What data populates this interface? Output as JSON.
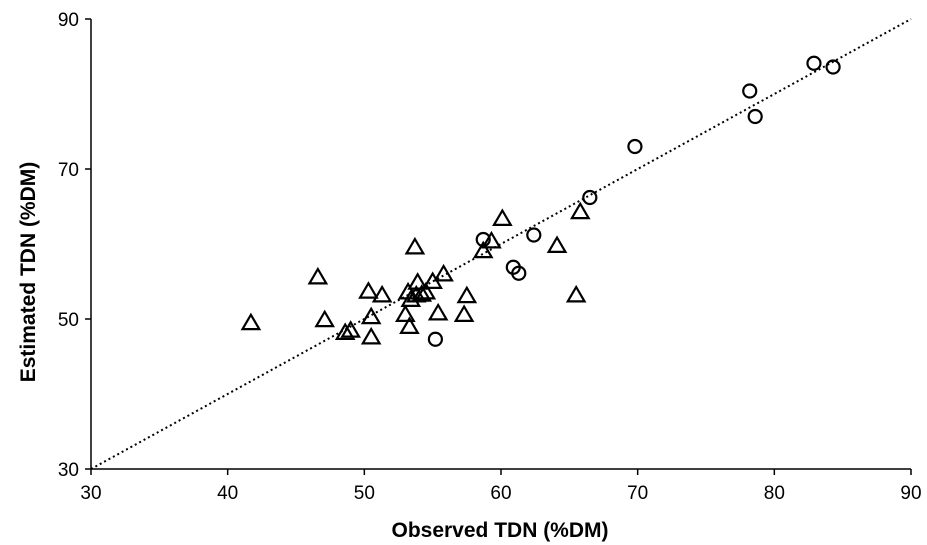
{
  "chart_data": {
    "type": "scatter",
    "xlabel": "Observed TDN (%DM)",
    "ylabel": "Estimated TDN (%DM)",
    "xlim": [
      30,
      90
    ],
    "ylim": [
      30,
      90
    ],
    "x_ticks": [
      30,
      40,
      50,
      60,
      70,
      80,
      90
    ],
    "y_ticks": [
      30,
      50,
      70,
      90
    ],
    "grid": false,
    "reference_line": {
      "style": "dotted",
      "from": [
        30,
        30
      ],
      "to": [
        90,
        90
      ]
    },
    "series": [
      {
        "marker": "circle",
        "points": [
          [
            55.2,
            47.3
          ],
          [
            58.7,
            60.6
          ],
          [
            60.9,
            56.9
          ],
          [
            61.3,
            56.1
          ],
          [
            62.4,
            61.2
          ],
          [
            66.5,
            66.2
          ],
          [
            69.8,
            73.0
          ],
          [
            78.2,
            80.4
          ],
          [
            78.6,
            77.0
          ],
          [
            82.9,
            84.1
          ],
          [
            84.3,
            83.6
          ]
        ]
      },
      {
        "marker": "triangle",
        "points": [
          [
            41.7,
            49.5
          ],
          [
            46.6,
            55.6
          ],
          [
            47.1,
            49.9
          ],
          [
            48.6,
            48.2
          ],
          [
            49.0,
            48.5
          ],
          [
            50.3,
            53.7
          ],
          [
            50.5,
            50.3
          ],
          [
            50.5,
            47.6
          ],
          [
            51.3,
            53.2
          ],
          [
            53.0,
            50.6
          ],
          [
            53.2,
            53.6
          ],
          [
            53.3,
            49.0
          ],
          [
            53.4,
            52.6
          ],
          [
            53.7,
            59.6
          ],
          [
            53.8,
            53.2
          ],
          [
            53.9,
            54.9
          ],
          [
            54.2,
            53.3
          ],
          [
            54.5,
            53.6
          ],
          [
            55.0,
            55.0
          ],
          [
            55.4,
            50.8
          ],
          [
            55.8,
            56.0
          ],
          [
            57.3,
            50.6
          ],
          [
            57.5,
            53.1
          ],
          [
            58.7,
            59.1
          ],
          [
            59.3,
            60.4
          ],
          [
            60.1,
            63.4
          ],
          [
            64.1,
            59.8
          ],
          [
            65.5,
            53.2
          ],
          [
            65.8,
            64.3
          ]
        ]
      }
    ]
  }
}
